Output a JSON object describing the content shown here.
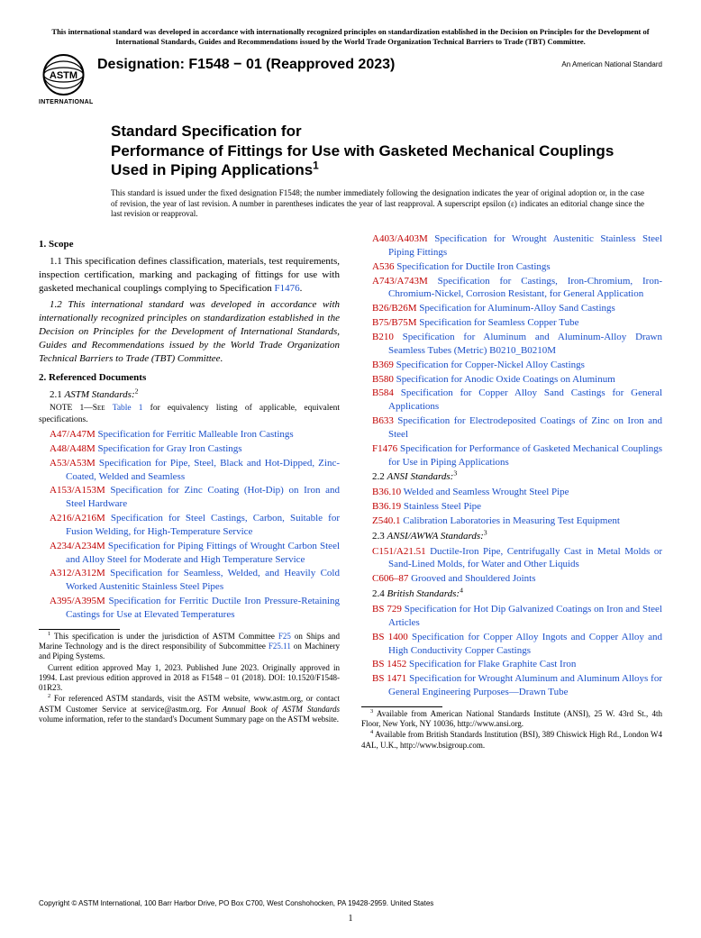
{
  "top_notice": "This international standard was developed in accordance with internationally recognized principles on standardization established in the Decision on Principles for the Development of International Standards, Guides and Recommendations issued by the World Trade Organization Technical Barriers to Trade (TBT) Committee.",
  "designation": "Designation: F1548 − 01 (Reapproved 2023)",
  "ans_label": "An American National Standard",
  "logo_text": "INTERNATIONAL",
  "title_line1": "Standard Specification for",
  "title_line2": "Performance of Fittings for Use with Gasketed Mechanical Couplings Used in Piping Applications",
  "title_sup": "1",
  "issuance_note": "This standard is issued under the fixed designation F1548; the number immediately following the designation indicates the year of original adoption or, in the case of revision, the year of last revision. A number in parentheses indicates the year of last reapproval. A superscript epsilon (ε) indicates an editorial change since the last revision or reapproval.",
  "scope_head": "1. Scope",
  "scope_p1_a": "1.1 This specification defines classification, materials, test requirements, inspection certification, marking and packaging of fittings for use with gasketed mechanical couplings complying to Specification ",
  "scope_p1_link": "F1476",
  "scope_p1_b": ".",
  "scope_p2": "1.2 This international standard was developed in accordance with internationally recognized principles on standardization established in the Decision on Principles for the Development of International Standards, Guides and Recommendations issued by the World Trade Organization Technical Barriers to Trade (TBT) Committee.",
  "ref_head": "2. Referenced Documents",
  "ref_21_num": "2.1 ",
  "ref_21_lbl": "ASTM Standards:",
  "ref_21_sup": "2",
  "note1_a": "NOTE 1—See ",
  "note1_link": "Table 1",
  "note1_b": " for equivalency listing of applicable, equivalent specifications.",
  "astm_refs": [
    {
      "code": "A47/A47M",
      "title": "Specification for Ferritic Malleable Iron Castings"
    },
    {
      "code": "A48/A48M",
      "title": "Specification for Gray Iron Castings"
    },
    {
      "code": "A53/A53M",
      "title": "Specification for Pipe, Steel, Black and Hot-Dipped, Zinc-Coated, Welded and Seamless"
    },
    {
      "code": "A153/A153M",
      "title": "Specification for Zinc Coating (Hot-Dip) on Iron and Steel Hardware"
    },
    {
      "code": "A216/A216M",
      "title": "Specification for Steel Castings, Carbon, Suitable for Fusion Welding, for High-Temperature Service"
    },
    {
      "code": "A234/A234M",
      "title": "Specification for Piping Fittings of Wrought Carbon Steel and Alloy Steel for Moderate and High Temperature Service"
    },
    {
      "code": "A312/A312M",
      "title": "Specification for Seamless, Welded, and Heavily Cold Worked Austenitic Stainless Steel Pipes"
    },
    {
      "code": "A395/A395M",
      "title": "Specification for Ferritic Ductile Iron Pressure-Retaining Castings for Use at Elevated Temperatures"
    },
    {
      "code": "A403/A403M",
      "title": "Specification for Wrought Austenitic Stainless Steel Piping Fittings"
    },
    {
      "code": "A536",
      "title": "Specification for Ductile Iron Castings"
    },
    {
      "code": "A743/A743M",
      "title": "Specification for Castings, Iron-Chromium, Iron-Chromium-Nickel, Corrosion Resistant, for General Application"
    },
    {
      "code": "B26/B26M",
      "title": "Specification for Aluminum-Alloy Sand Castings"
    },
    {
      "code": "B75/B75M",
      "title": "Specification for Seamless Copper Tube"
    },
    {
      "code": "B210",
      "title": "Specification for Aluminum and Aluminum-Alloy Drawn Seamless Tubes (Metric) B0210_B0210M"
    },
    {
      "code": "B369",
      "title": "Specification for Copper-Nickel Alloy Castings"
    },
    {
      "code": "B580",
      "title": "Specification for Anodic Oxide Coatings on Aluminum"
    },
    {
      "code": "B584",
      "title": "Specification for Copper Alloy Sand Castings for General Applications"
    },
    {
      "code": "B633",
      "title": "Specification for Electrodeposited Coatings of Zinc on Iron and Steel"
    },
    {
      "code": "F1476",
      "title": "Specification for Performance of Gasketed Mechanical Couplings for Use in Piping Applications"
    }
  ],
  "ref_22_num": "2.2 ",
  "ref_22_lbl": "ANSI Standards:",
  "ref_22_sup": "3",
  "ansi_refs": [
    {
      "code": "B36.10",
      "title": "Welded and Seamless Wrought Steel Pipe"
    },
    {
      "code": "B36.19",
      "title": "Stainless Steel Pipe"
    },
    {
      "code": "Z540.1",
      "title": "Calibration Laboratories in Measuring Test Equipment"
    }
  ],
  "ref_23_num": "2.3 ",
  "ref_23_lbl": "ANSI/AWWA Standards:",
  "ref_23_sup": "3",
  "awwa_refs": [
    {
      "code": "C151/A21.51",
      "title": "Ductile-Iron Pipe, Centrifugally Cast in Metal Molds or Sand-Lined Molds, for Water and Other Liquids"
    },
    {
      "code": "C606–87",
      "title": "Grooved and Shouldered Joints"
    }
  ],
  "ref_24_num": "2.4 ",
  "ref_24_lbl": "British Standards:",
  "ref_24_sup": "4",
  "bs_refs": [
    {
      "code": "BS 729",
      "title": "Specification for Hot Dip Galvanized Coatings on Iron and Steel Articles"
    },
    {
      "code": "BS 1400",
      "title": "Specification for Copper Alloy Ingots and Copper Alloy and High Conductivity Copper Castings"
    },
    {
      "code": "BS 1452",
      "title": "Specification for Flake Graphite Cast Iron"
    },
    {
      "code": "BS 1471",
      "title": "Specification for Wrought Aluminum and Aluminum Alloys for General Engineering Purposes—Drawn Tube"
    }
  ],
  "fn1_a": "This specification is under the jurisdiction of ASTM Committee ",
  "fn1_link1": "F25",
  "fn1_b": " on Ships and Marine Technology and is the direct responsibility of Subcommittee ",
  "fn1_link2": "F25.11",
  "fn1_c": " on Machinery and Piping Systems.",
  "fn1_p2": "Current edition approved May 1, 2023. Published June 2023. Originally approved in 1994. Last previous edition approved in 2018 as F1548 – 01 (2018). DOI: 10.1520/F1548-01R23.",
  "fn2_a": "For referenced ASTM standards, visit the ASTM website, www.astm.org, or contact ASTM Customer Service at service@astm.org. For ",
  "fn2_i": "Annual Book of ASTM Standards",
  "fn2_b": " volume information, refer to the standard's Document Summary page on the ASTM website.",
  "fn3": "Available from American National Standards Institute (ANSI), 25 W. 43rd St., 4th Floor, New York, NY 10036, http://www.ansi.org.",
  "fn4": "Available from British Standards Institution (BSI), 389 Chiswick High Rd., London W4 4AL, U.K., http://www.bsigroup.com.",
  "copyright": "Copyright © ASTM International, 100 Barr Harbor Drive, PO Box C700, West Conshohocken, PA 19428-2959. United States",
  "pagenum": "1"
}
